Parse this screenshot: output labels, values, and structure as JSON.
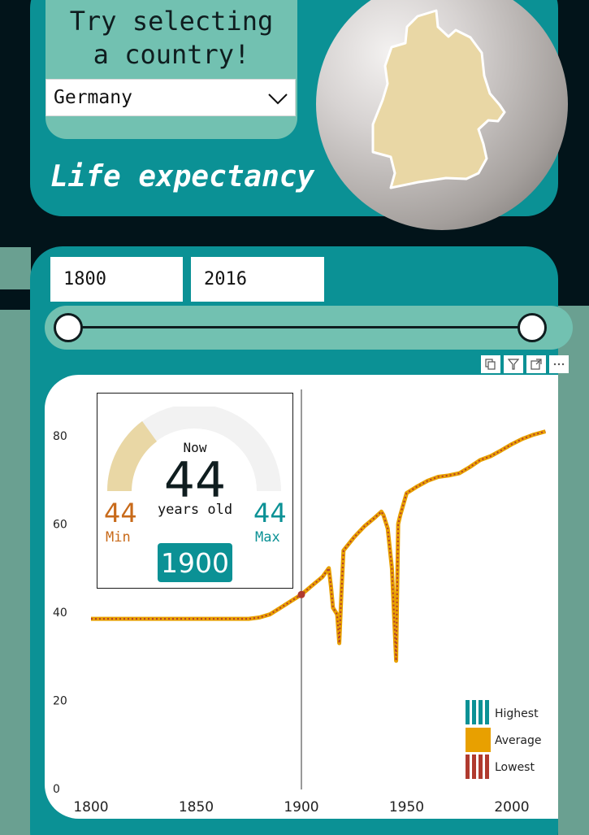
{
  "header": {
    "prompt_line1": "Try selecting",
    "prompt_line2": "a country!",
    "country_selected": "Germany",
    "title": "Life expectancy",
    "map_icon": "germany-map-icon"
  },
  "range": {
    "start": "1800",
    "end": "2016"
  },
  "toolbar": {
    "icons": [
      "copy-icon",
      "filter-icon",
      "focus-mode-icon",
      "more-options-icon"
    ]
  },
  "tooltip": {
    "now_label": "Now",
    "now_value": "44",
    "years_old": "years old",
    "min_value": "44",
    "min_label": "Min",
    "max_value": "44",
    "max_label": "Max",
    "year": "1900"
  },
  "legend": {
    "highest": "Highest",
    "average": "Average",
    "lowest": "Lowest"
  },
  "colors": {
    "teal": "#0b9195",
    "light_teal": "#72c1b1",
    "orange_line": "#e8a000",
    "red_dash": "#b03a2e",
    "min_color": "#c86a1a",
    "gauge_fill": "#e9d7a5"
  },
  "chart_data": {
    "type": "line",
    "xlim": [
      1800,
      2016
    ],
    "ylim": [
      0,
      90
    ],
    "x_ticks": [
      "1800",
      "1850",
      "1900",
      "1950",
      "2000"
    ],
    "y_ticks": [
      "0",
      "20",
      "40",
      "60",
      "80"
    ],
    "marker_year": 1900,
    "marker_value": 44,
    "series": [
      {
        "name": "Average",
        "points": [
          [
            1800,
            38.5
          ],
          [
            1820,
            38.5
          ],
          [
            1840,
            38.5
          ],
          [
            1860,
            38.5
          ],
          [
            1875,
            38.5
          ],
          [
            1880,
            38.8
          ],
          [
            1885,
            39.5
          ],
          [
            1890,
            41
          ],
          [
            1895,
            42.5
          ],
          [
            1900,
            44
          ],
          [
            1905,
            46
          ],
          [
            1910,
            48
          ],
          [
            1913,
            50
          ],
          [
            1914,
            46
          ],
          [
            1915,
            41
          ],
          [
            1917,
            39.5
          ],
          [
            1918,
            33
          ],
          [
            1919,
            44
          ],
          [
            1920,
            54
          ],
          [
            1925,
            57
          ],
          [
            1930,
            59.5
          ],
          [
            1935,
            61.5
          ],
          [
            1938,
            62.8
          ],
          [
            1939,
            62
          ],
          [
            1941,
            59
          ],
          [
            1943,
            50
          ],
          [
            1945,
            29
          ],
          [
            1946,
            60
          ],
          [
            1947,
            62
          ],
          [
            1950,
            67
          ],
          [
            1955,
            68.5
          ],
          [
            1960,
            69.8
          ],
          [
            1965,
            70.7
          ],
          [
            1970,
            71
          ],
          [
            1975,
            71.5
          ],
          [
            1980,
            72.9
          ],
          [
            1985,
            74.5
          ],
          [
            1990,
            75.4
          ],
          [
            1995,
            76.7
          ],
          [
            2000,
            78.1
          ],
          [
            2005,
            79.3
          ],
          [
            2010,
            80.2
          ],
          [
            2016,
            81
          ]
        ]
      }
    ]
  }
}
